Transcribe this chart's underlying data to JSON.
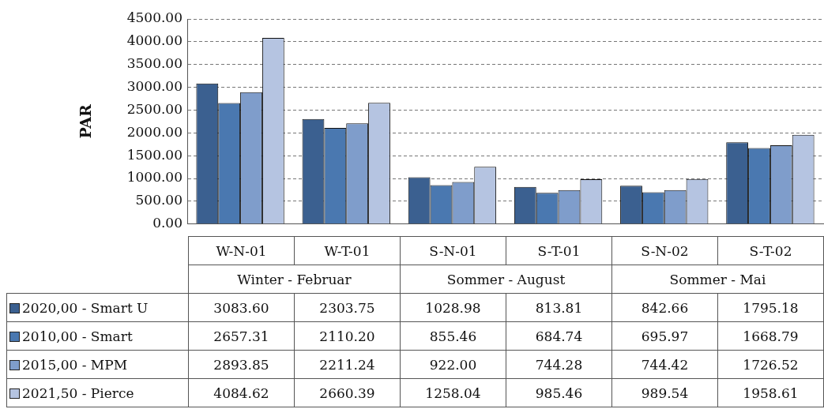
{
  "chart_data": {
    "type": "bar",
    "ylabel": "PAR",
    "categories": [
      "W-N-01",
      "W-T-01",
      "S-N-01",
      "S-T-01",
      "S-N-02",
      "S-T-02"
    ],
    "annotations": [
      "Winter - Februar",
      "Sommer - August",
      "Sommer - Mai"
    ],
    "series": [
      {
        "name": "2020,00 - Smart U",
        "color": "#3b6090",
        "values": [
          3083.6,
          2303.75,
          1028.98,
          813.81,
          842.66,
          1795.18
        ],
        "value_labels": [
          "3083.60",
          "2303.75",
          "1028.98",
          "813.81",
          "842.66",
          "1795.18"
        ]
      },
      {
        "name": "2010,00 - Smart",
        "color": "#4a78b0",
        "values": [
          2657.31,
          2110.2,
          855.46,
          684.74,
          695.97,
          1668.79
        ],
        "value_labels": [
          "2657.31",
          "2110.20",
          "855.46",
          "684.74",
          "695.97",
          "1668.79"
        ]
      },
      {
        "name": "2015,00 - MPM",
        "color": "#7f9dcb",
        "values": [
          2893.85,
          2211.24,
          922,
          744.28,
          744.42,
          1726.52
        ],
        "value_labels": [
          "2893.85",
          "2211.24",
          "922.00",
          "744.28",
          "744.42",
          "1726.52"
        ]
      },
      {
        "name": "2021,50 - Pierce",
        "color": "#b5c4e1",
        "values": [
          4084.62,
          2660.39,
          1258.04,
          985.46,
          989.54,
          1958.61
        ],
        "value_labels": [
          "4084.62",
          "2660.39",
          "1258.04",
          "985.46",
          "989.54",
          "1958.61"
        ]
      }
    ],
    "ylim": [
      0,
      4500
    ],
    "yticks": [
      {
        "value": 0,
        "label": "0.00"
      },
      {
        "value": 500,
        "label": "500.00"
      },
      {
        "value": 1000,
        "label": "1000.00"
      },
      {
        "value": 1500,
        "label": "1500.00"
      },
      {
        "value": 2000,
        "label": "2000.00"
      },
      {
        "value": 2500,
        "label": "2500.00"
      },
      {
        "value": 3000,
        "label": "3000.00"
      },
      {
        "value": 3500,
        "label": "3500.00"
      },
      {
        "value": 4000,
        "label": "4000.00"
      },
      {
        "value": 4500,
        "label": "4500.00"
      }
    ],
    "grid": "y",
    "legend": "bottom"
  }
}
